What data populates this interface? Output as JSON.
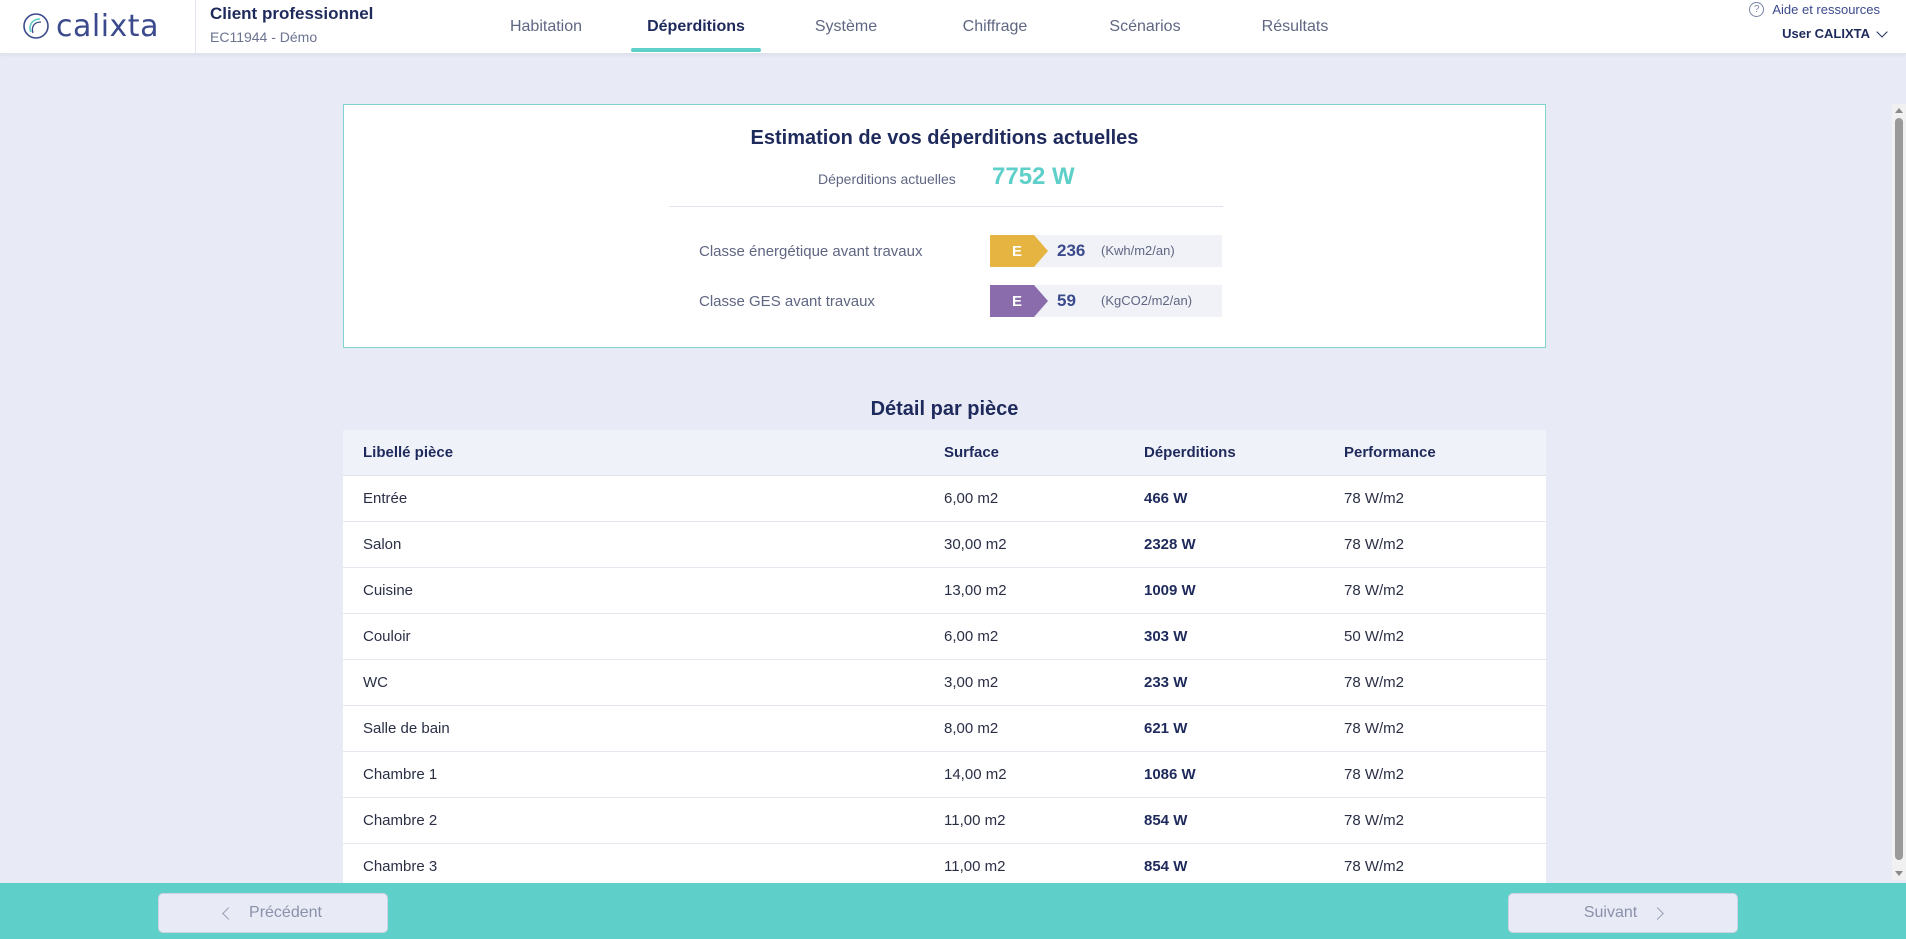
{
  "header": {
    "logo_text": "calixta",
    "client_title": "Client professionnel",
    "client_sub": "EC11944 - Démo",
    "help_label": "Aide et ressources",
    "user_label": "User CALIXTA"
  },
  "nav": {
    "tabs": [
      {
        "label": "Habitation"
      },
      {
        "label": "Déperditions",
        "active": true
      },
      {
        "label": "Système"
      },
      {
        "label": "Chiffrage"
      },
      {
        "label": "Scénarios"
      },
      {
        "label": "Résultats"
      }
    ]
  },
  "estimation": {
    "title": "Estimation de vos déperditions actuelles",
    "current_label": "Déperditions actuelles",
    "current_value": "7752 W",
    "energy": {
      "label": "Classe énergétique avant travaux",
      "class": "E",
      "value": "236",
      "unit": "(Kwh/m2/an)",
      "color": "#e6b441"
    },
    "ges": {
      "label": "Classe GES avant travaux",
      "class": "E",
      "value": "59",
      "unit": "(KgCO2/m2/an)",
      "color": "#8a6bab"
    }
  },
  "detail": {
    "title": "Détail par pièce",
    "columns": [
      "Libellé pièce",
      "Surface",
      "Déperditions",
      "Performance"
    ],
    "rows": [
      {
        "room": "Entrée",
        "surface": "6,00 m2",
        "loss": "466 W",
        "perf": "78 W/m2"
      },
      {
        "room": "Salon",
        "surface": "30,00 m2",
        "loss": "2328 W",
        "perf": "78 W/m2"
      },
      {
        "room": "Cuisine",
        "surface": "13,00 m2",
        "loss": "1009 W",
        "perf": "78 W/m2"
      },
      {
        "room": "Couloir",
        "surface": "6,00 m2",
        "loss": "303 W",
        "perf": "50 W/m2"
      },
      {
        "room": "WC",
        "surface": "3,00 m2",
        "loss": "233 W",
        "perf": "78 W/m2"
      },
      {
        "room": "Salle de bain",
        "surface": "8,00 m2",
        "loss": "621 W",
        "perf": "78 W/m2"
      },
      {
        "room": "Chambre 1",
        "surface": "14,00 m2",
        "loss": "1086 W",
        "perf": "78 W/m2"
      },
      {
        "room": "Chambre 2",
        "surface": "11,00 m2",
        "loss": "854 W",
        "perf": "78 W/m2"
      },
      {
        "room": "Chambre 3",
        "surface": "11,00 m2",
        "loss": "854 W",
        "perf": "78 W/m2"
      }
    ]
  },
  "footer": {
    "prev_label": "Précédent",
    "next_label": "Suivant"
  },
  "colors": {
    "accent": "#5ecfc9",
    "primary": "#1f2a5c"
  }
}
